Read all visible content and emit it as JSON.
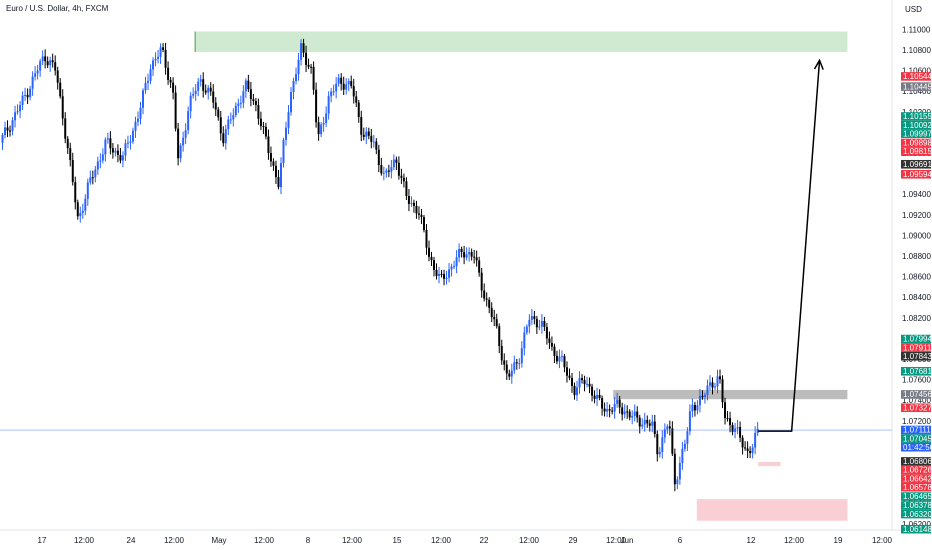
{
  "header": {
    "title": "Euro / U.S. Dollar, 4h, FXCM"
  },
  "chart_data": {
    "type": "candlestick",
    "currency_label": "USD",
    "ylim": [
      1.0614,
      1.1115
    ],
    "y_ticks": [
      "1.11000",
      "1.10800",
      "1.10600",
      "1.10400",
      "1.10200",
      "1.10000",
      "1.09800",
      "1.09600",
      "1.09400",
      "1.09200",
      "1.09000",
      "1.08800",
      "1.08600",
      "1.08400",
      "1.08200",
      "1.08000",
      "1.07800",
      "1.07600",
      "1.07400",
      "1.07200",
      "1.07000",
      "1.06800",
      "1.06600",
      "1.06400",
      "1.06200"
    ],
    "x_ticks": [
      "17",
      "12:00",
      "24",
      "12:00",
      "May",
      "12:00",
      "8",
      "12:00",
      "15",
      "12:00",
      "22",
      "12:00",
      "29",
      "12:00",
      "Jun",
      "6",
      "12",
      "12:00",
      "19",
      "12:00"
    ],
    "price_path": [
      [
        0,
        1.099
      ],
      [
        4,
        1.103
      ],
      [
        8,
        1.1075
      ],
      [
        10,
        1.106
      ],
      [
        12,
        1.099
      ],
      [
        14,
        1.0915
      ],
      [
        16,
        1.095
      ],
      [
        19,
        1.099
      ],
      [
        22,
        1.0975
      ],
      [
        25,
        1.102
      ],
      [
        27,
        1.1065
      ],
      [
        29,
        1.108
      ],
      [
        31,
        1.104
      ],
      [
        32,
        1.097
      ],
      [
        34,
        1.103
      ],
      [
        36,
        1.105
      ],
      [
        38,
        1.1035
      ],
      [
        40,
        1.0995
      ],
      [
        42,
        1.102
      ],
      [
        44,
        1.1045
      ],
      [
        46,
        1.1025
      ],
      [
        48,
        1.0985
      ],
      [
        50,
        1.095
      ],
      [
        52,
        1.1035
      ],
      [
        54,
        1.108
      ],
      [
        56,
        1.106
      ],
      [
        57,
        1.099
      ],
      [
        59,
        1.1035
      ],
      [
        61,
        1.105
      ],
      [
        63,
        1.1045
      ],
      [
        65,
        1.1
      ],
      [
        67,
        1.099
      ],
      [
        69,
        1.0955
      ],
      [
        71,
        1.0975
      ],
      [
        73,
        1.0935
      ],
      [
        75,
        1.0925
      ],
      [
        77,
        1.088
      ],
      [
        79,
        1.0855
      ],
      [
        81,
        1.087
      ],
      [
        83,
        1.0885
      ],
      [
        85,
        1.088
      ],
      [
        87,
        1.084
      ],
      [
        89,
        1.081
      ],
      [
        91,
        1.076
      ],
      [
        93,
        1.078
      ],
      [
        95,
        1.082
      ],
      [
        97,
        1.0815
      ],
      [
        99,
        1.079
      ],
      [
        101,
        1.0775
      ],
      [
        103,
        1.075
      ],
      [
        105,
        1.076
      ],
      [
        107,
        1.074
      ],
      [
        109,
        1.073
      ],
      [
        111,
        1.0735
      ],
      [
        113,
        1.0725
      ],
      [
        115,
        1.072
      ],
      [
        117,
        1.0715
      ],
      [
        118,
        1.069
      ],
      [
        120,
        1.072
      ],
      [
        121,
        1.066
      ],
      [
        123,
        1.07
      ],
      [
        124,
        1.0735
      ],
      [
        126,
        1.074
      ],
      [
        127,
        1.0755
      ],
      [
        129,
        1.076
      ],
      [
        130,
        1.0725
      ],
      [
        132,
        1.071
      ],
      [
        134,
        1.069
      ],
      [
        135,
        1.0695
      ],
      [
        136,
        1.071
      ]
    ],
    "projection": [
      [
        136,
        1.071
      ],
      [
        142,
        1.071
      ],
      [
        147,
        1.107
      ]
    ],
    "zones": [
      {
        "name": "supply-zone",
        "x0": 35,
        "x1": 152,
        "y0": 1.1078,
        "y1": 1.1098,
        "color": "#c8e6c9"
      },
      {
        "name": "resistance-zone",
        "x0": 110,
        "x1": 152,
        "y0": 1.0741,
        "y1": 1.075,
        "color": "#b0b0b0"
      },
      {
        "name": "demand-zone",
        "x0": 125,
        "x1": 152,
        "y0": 1.0623,
        "y1": 1.0644,
        "color": "#f8c5cc"
      },
      {
        "name": "small-demand-mark",
        "x0": 136,
        "x1": 140,
        "y0": 1.0676,
        "y1": 1.068,
        "color": "#f8c5cc"
      }
    ],
    "current_price_line": 1.0711,
    "price_labels": [
      {
        "value": "1.10544",
        "y": 1.10544,
        "color": "#f23645"
      },
      {
        "value": "1.10445",
        "y": 1.10445,
        "color": "#787b86"
      },
      {
        "value": "1.10155",
        "y": 1.10155,
        "color": "#089981"
      },
      {
        "value": "1.10092",
        "y": 1.10092,
        "color": "#089981"
      },
      {
        "value": "1.09997",
        "y": 1.09997,
        "color": "#089981"
      },
      {
        "value": "1.09898",
        "y": 1.09898,
        "color": "#f23645"
      },
      {
        "value": "1.09815",
        "y": 1.09815,
        "color": "#f23645"
      },
      {
        "value": "1.09691",
        "y": 1.09691,
        "color": "#333333"
      },
      {
        "value": "1.09594",
        "y": 1.09594,
        "color": "#f23645"
      },
      {
        "value": "1.07994",
        "y": 1.07994,
        "color": "#089981"
      },
      {
        "value": "1.07911",
        "y": 1.07911,
        "color": "#f23645"
      },
      {
        "value": "1.07843",
        "y": 1.07843,
        "color": "#333333"
      },
      {
        "value": "1.07681",
        "y": 1.07681,
        "color": "#089981"
      },
      {
        "value": "1.07456",
        "y": 1.07456,
        "color": "#787b86"
      },
      {
        "value": "1.07327",
        "y": 1.07327,
        "color": "#f23645"
      },
      {
        "value": "1.07111",
        "y": 1.07111,
        "color": "#2962ff"
      },
      {
        "value": "1.07045",
        "y": 1.07045,
        "color": "#089981"
      },
      {
        "value": "01:42:56",
        "y": 1.06965,
        "color": "#2962ff"
      },
      {
        "value": "1.06806",
        "y": 1.06806,
        "color": "#333333"
      },
      {
        "value": "1.06726",
        "y": 1.06726,
        "color": "#f23645"
      },
      {
        "value": "1.06642",
        "y": 1.06642,
        "color": "#f23645"
      },
      {
        "value": "1.06578",
        "y": 1.06578,
        "color": "#f23645"
      },
      {
        "value": "1.06465",
        "y": 1.06465,
        "color": "#089981"
      },
      {
        "value": "1.06378",
        "y": 1.06378,
        "color": "#089981"
      },
      {
        "value": "1.06320",
        "y": 1.0632,
        "color": "#089981"
      },
      {
        "value": "1.06148",
        "y": 1.06148,
        "color": "#089981"
      }
    ]
  }
}
